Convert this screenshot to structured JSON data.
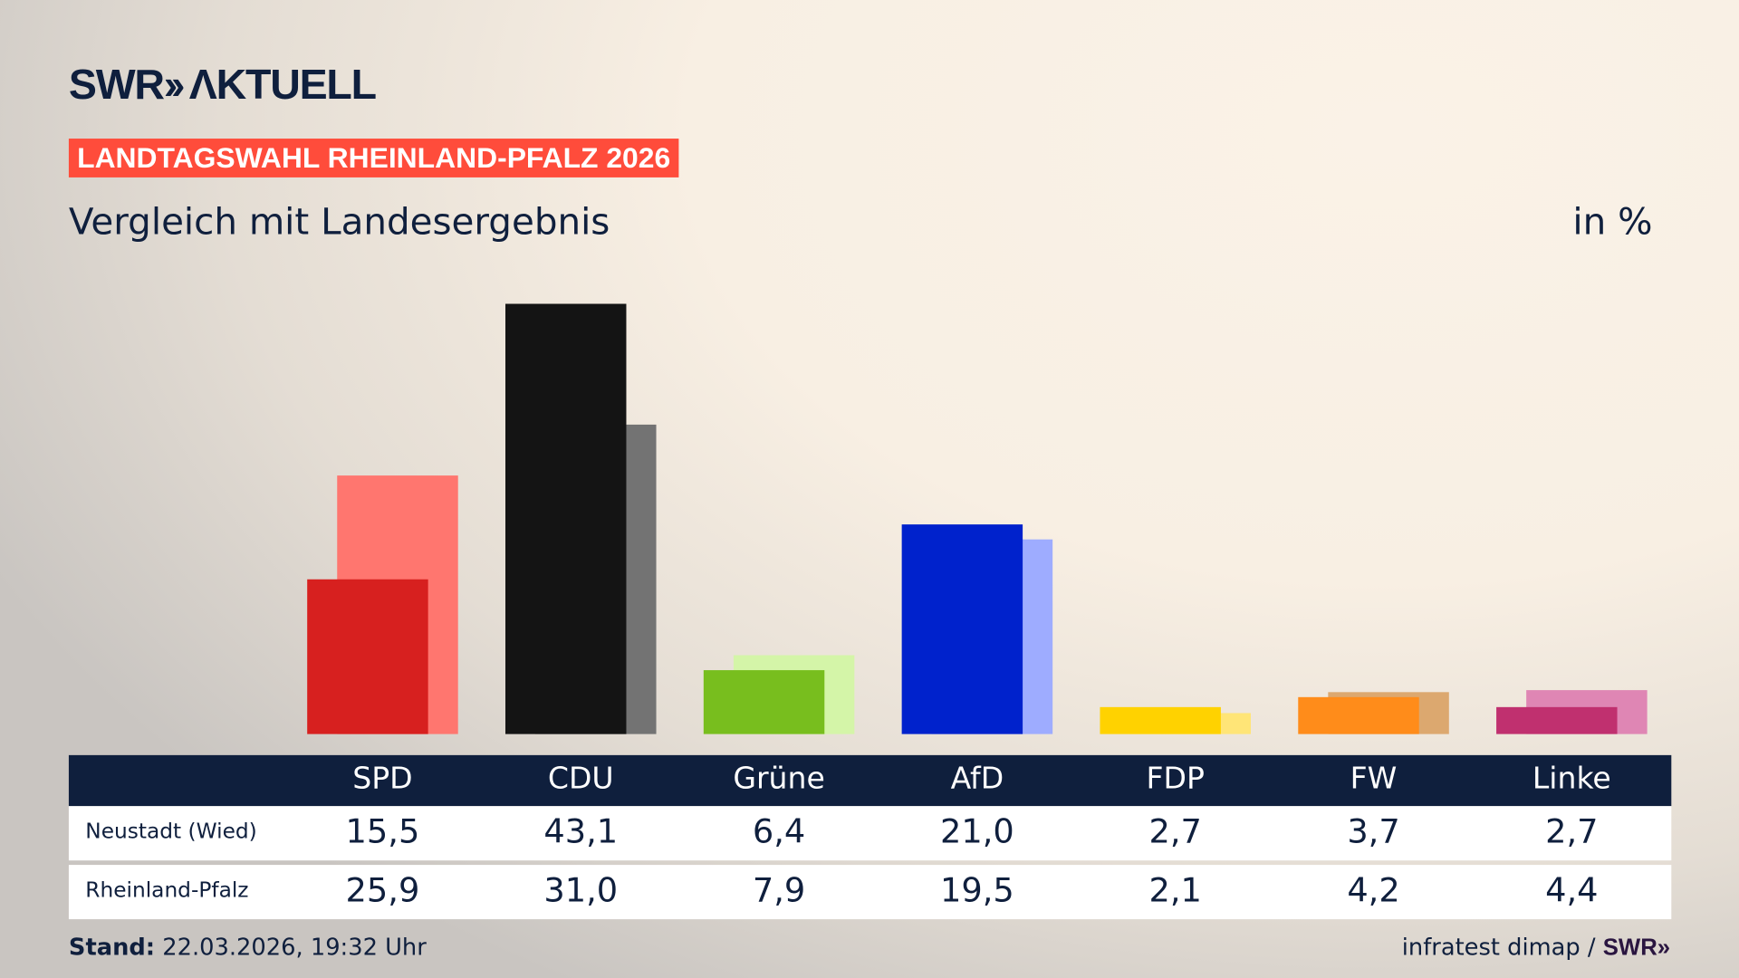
{
  "logo": "SWR» AKTUELL",
  "band": "LANDTAGSWAHL RHEINLAND-PFALZ 2026",
  "subtitle": "Vergleich mit Landesergebnis",
  "unit": "in %",
  "footer": {
    "stand_label": "Stand:",
    "stand_value": " 22.03.2026, 19:32 Uhr",
    "source": "infratest dimap / ",
    "source_logo": "SWR»"
  },
  "chart_data": {
    "type": "bar",
    "categories": [
      "SPD",
      "CDU",
      "Grüne",
      "AfD",
      "FDP",
      "FW",
      "Linke"
    ],
    "series": [
      {
        "name": "Neustadt (Wied)",
        "values": [
          15.5,
          43.1,
          6.4,
          21.0,
          2.7,
          3.7,
          2.7
        ],
        "labels": [
          "15,5",
          "43,1",
          "6,4",
          "21,0",
          "2,7",
          "3,7",
          "2,7"
        ]
      },
      {
        "name": "Rheinland-Pfalz",
        "values": [
          25.9,
          31.0,
          7.9,
          19.5,
          2.1,
          4.2,
          4.4
        ],
        "labels": [
          "25,9",
          "31,0",
          "7,9",
          "19,5",
          "2,1",
          "4,2",
          "4,4"
        ]
      }
    ],
    "colors_district": [
      "#d7201f",
      "#141414",
      "#78be1e",
      "#0022cc",
      "#ffd200",
      "#ff8c1a",
      "#c0306f"
    ],
    "colors_state": [
      "#ff766f",
      "#737373",
      "#d4f5a8",
      "#9eacff",
      "#ffe577",
      "#dca86f",
      "#df86b4"
    ],
    "ylim": [
      0,
      45
    ],
    "grid": false
  }
}
